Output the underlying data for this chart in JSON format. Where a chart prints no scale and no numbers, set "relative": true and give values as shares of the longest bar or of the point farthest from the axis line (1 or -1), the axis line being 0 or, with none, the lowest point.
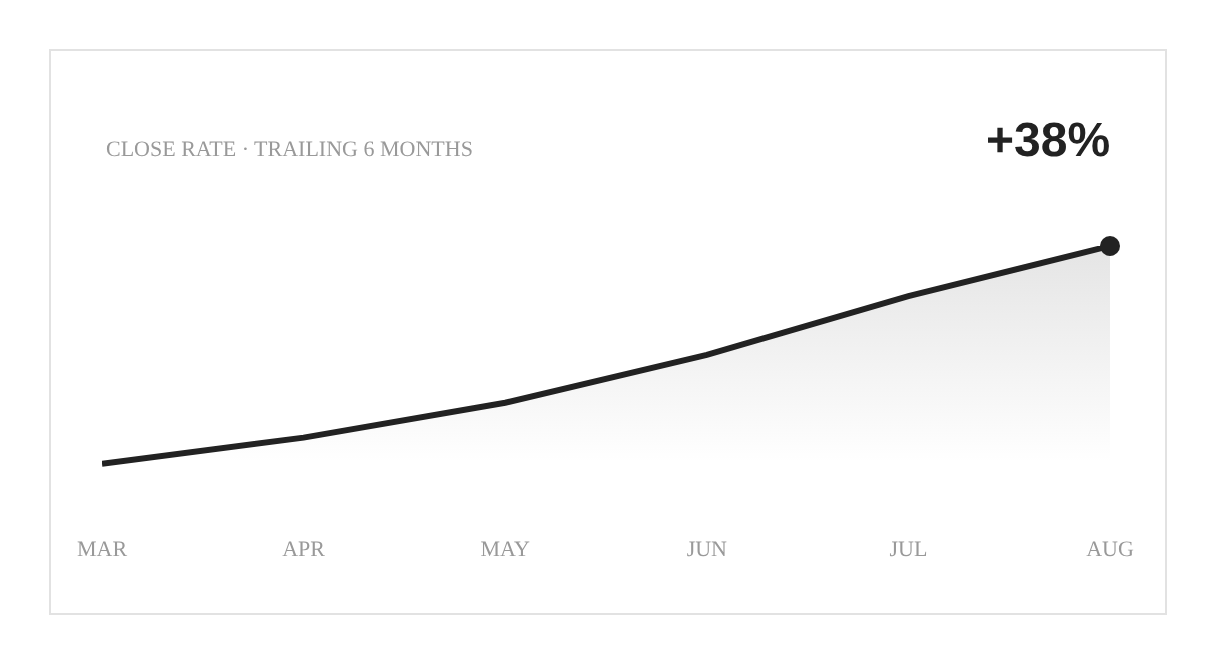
{
  "chart_data": {
    "type": "area",
    "title": "CLOSE RATE · TRAILING 6 MONTHS",
    "relative": true,
    "annotations": [
      "+38%"
    ],
    "categories": [
      "MAR",
      "APR",
      "MAY",
      "JUN",
      "JUL",
      "AUG"
    ],
    "series": [
      {
        "color": "#222222",
        "values": [
          0,
          0.12,
          0.28,
          0.5,
          0.77,
          1
        ]
      },
      {
        "type": "scatter",
        "color": "#222222",
        "marker": "circle",
        "x": [
          "AUG"
        ],
        "values": [
          1
        ]
      }
    ],
    "marker": "none",
    "line_style": "solid"
  }
}
